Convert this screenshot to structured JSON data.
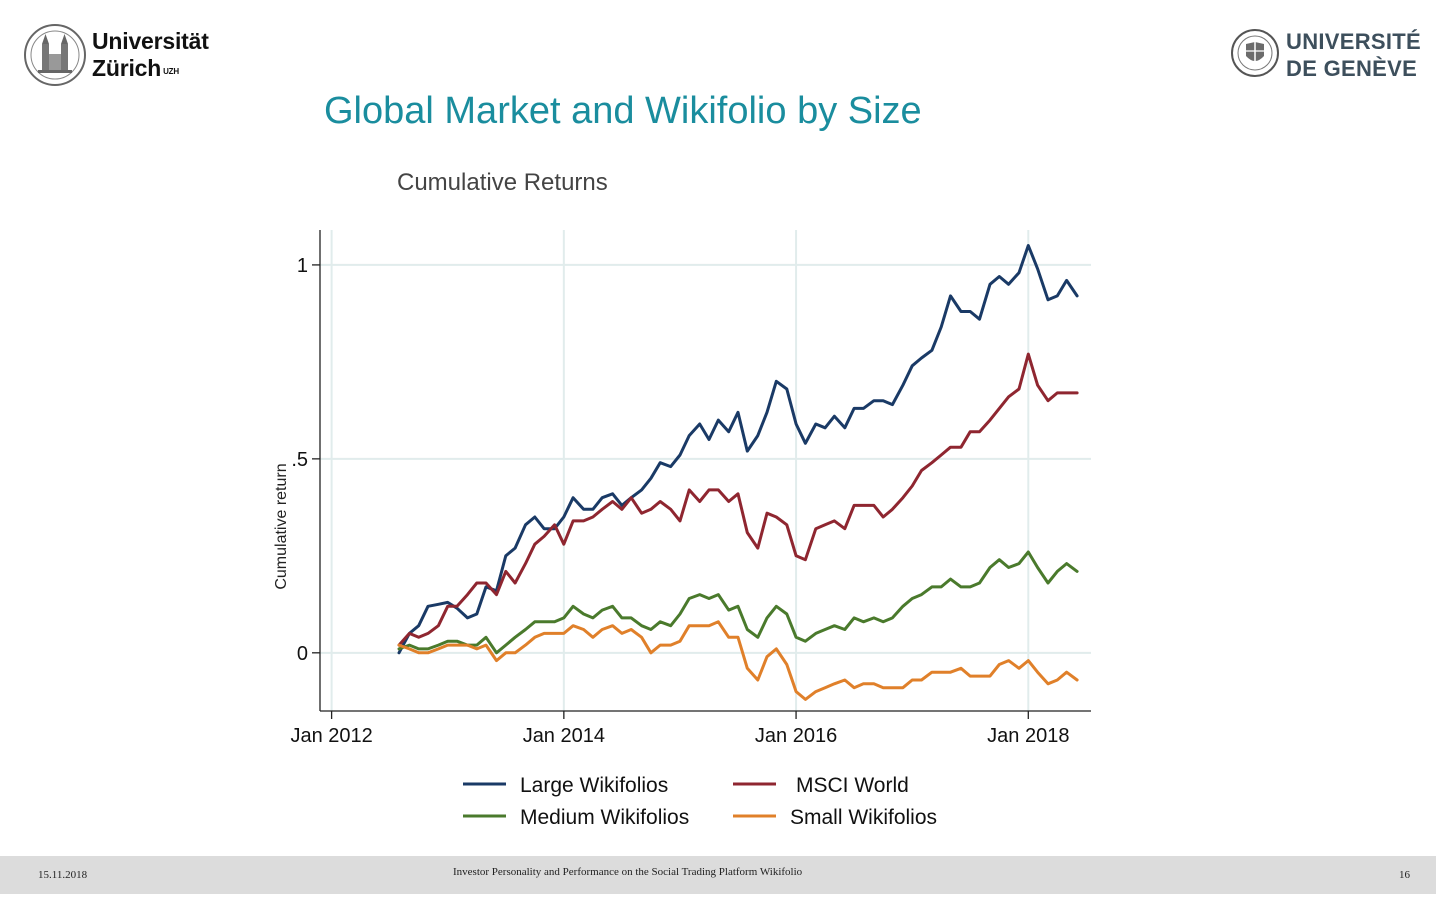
{
  "header": {
    "uzh_line1": "Universität",
    "uzh_line2": "Zürich",
    "uzh_sup": "UZH",
    "unige_line1": "UNIVERSITÉ",
    "unige_line2": "DE GENÈVE",
    "title": "Global Market and Wikifolio by Size"
  },
  "footer": {
    "date": "15.11.2018",
    "center": "Investor Personality and Performance on the Social Trading Platform Wikifolio",
    "page": "16"
  },
  "colors": {
    "title": "#1a8d9e",
    "grid": "#e1ecec",
    "large": "#1a3a66",
    "msci": "#8f2630",
    "medium": "#4a7a2c",
    "small": "#e0802a"
  },
  "chart_data": {
    "type": "line",
    "title": "Cumulative Returns",
    "xlabel": "",
    "ylabel": "Cumulative return",
    "xlim": [
      2011.9,
      2018.54
    ],
    "ylim": [
      -0.15,
      1.09
    ],
    "x_ticks": [
      {
        "value": 2012,
        "label": "Jan 2012"
      },
      {
        "value": 2014,
        "label": "Jan 2014"
      },
      {
        "value": 2016,
        "label": "Jan 2016"
      },
      {
        "value": 2018,
        "label": "Jan 2018"
      }
    ],
    "y_ticks": [
      {
        "value": 0,
        "label": "0"
      },
      {
        "value": 0.5,
        "label": ".5"
      },
      {
        "value": 1,
        "label": "1"
      }
    ],
    "x": [
      2012.58,
      2012.67,
      2012.75,
      2012.83,
      2012.92,
      2013.0,
      2013.08,
      2013.17,
      2013.25,
      2013.33,
      2013.42,
      2013.5,
      2013.58,
      2013.67,
      2013.75,
      2013.83,
      2013.92,
      2014.0,
      2014.08,
      2014.17,
      2014.25,
      2014.33,
      2014.42,
      2014.5,
      2014.58,
      2014.67,
      2014.75,
      2014.83,
      2014.92,
      2015.0,
      2015.08,
      2015.17,
      2015.25,
      2015.33,
      2015.42,
      2015.5,
      2015.58,
      2015.67,
      2015.75,
      2015.83,
      2015.92,
      2016.0,
      2016.08,
      2016.17,
      2016.25,
      2016.33,
      2016.42,
      2016.5,
      2016.58,
      2016.67,
      2016.75,
      2016.83,
      2016.92,
      2017.0,
      2017.08,
      2017.17,
      2017.25,
      2017.33,
      2017.42,
      2017.5,
      2017.58,
      2017.67,
      2017.75,
      2017.83,
      2017.92,
      2018.0,
      2018.08,
      2018.17,
      2018.25,
      2018.33,
      2018.42
    ],
    "series": [
      {
        "name": "Large Wikifolios",
        "color_key": "large",
        "values": [
          0.0,
          0.05,
          0.07,
          0.12,
          0.125,
          0.13,
          0.115,
          0.09,
          0.1,
          0.17,
          0.16,
          0.25,
          0.27,
          0.33,
          0.35,
          0.32,
          0.32,
          0.35,
          0.4,
          0.37,
          0.37,
          0.4,
          0.41,
          0.38,
          0.4,
          0.42,
          0.45,
          0.49,
          0.48,
          0.51,
          0.56,
          0.59,
          0.55,
          0.6,
          0.57,
          0.62,
          0.52,
          0.56,
          0.62,
          0.7,
          0.68,
          0.59,
          0.54,
          0.59,
          0.58,
          0.61,
          0.58,
          0.63,
          0.63,
          0.65,
          0.65,
          0.64,
          0.69,
          0.74,
          0.76,
          0.78,
          0.84,
          0.92,
          0.88,
          0.88,
          0.86,
          0.95,
          0.97,
          0.95,
          0.98,
          1.05,
          0.99,
          0.91,
          0.92,
          0.96,
          0.92
        ]
      },
      {
        "name": "MSCI World",
        "color_key": "msci",
        "values": [
          0.02,
          0.05,
          0.04,
          0.05,
          0.07,
          0.12,
          0.12,
          0.15,
          0.18,
          0.18,
          0.15,
          0.21,
          0.18,
          0.23,
          0.28,
          0.3,
          0.33,
          0.28,
          0.34,
          0.34,
          0.35,
          0.37,
          0.39,
          0.37,
          0.4,
          0.36,
          0.37,
          0.39,
          0.37,
          0.34,
          0.42,
          0.39,
          0.42,
          0.42,
          0.39,
          0.41,
          0.31,
          0.27,
          0.36,
          0.35,
          0.33,
          0.25,
          0.24,
          0.32,
          0.33,
          0.34,
          0.32,
          0.38,
          0.38,
          0.38,
          0.35,
          0.37,
          0.4,
          0.43,
          0.47,
          0.49,
          0.51,
          0.53,
          0.53,
          0.57,
          0.57,
          0.6,
          0.63,
          0.66,
          0.68,
          0.77,
          0.69,
          0.65,
          0.67,
          0.67,
          0.67
        ]
      },
      {
        "name": "Medium Wikifolios",
        "color_key": "medium",
        "values": [
          0.01,
          0.02,
          0.01,
          0.01,
          0.02,
          0.03,
          0.03,
          0.02,
          0.02,
          0.04,
          0.0,
          0.02,
          0.04,
          0.06,
          0.08,
          0.08,
          0.08,
          0.09,
          0.12,
          0.1,
          0.09,
          0.11,
          0.12,
          0.09,
          0.09,
          0.07,
          0.06,
          0.08,
          0.07,
          0.1,
          0.14,
          0.15,
          0.14,
          0.15,
          0.11,
          0.12,
          0.06,
          0.04,
          0.09,
          0.12,
          0.1,
          0.04,
          0.03,
          0.05,
          0.06,
          0.07,
          0.06,
          0.09,
          0.08,
          0.09,
          0.08,
          0.09,
          0.12,
          0.14,
          0.15,
          0.17,
          0.17,
          0.19,
          0.17,
          0.17,
          0.18,
          0.22,
          0.24,
          0.22,
          0.23,
          0.26,
          0.22,
          0.18,
          0.21,
          0.23,
          0.21
        ]
      },
      {
        "name": "Small Wikifolios",
        "color_key": "small",
        "values": [
          0.02,
          0.01,
          0.0,
          0.0,
          0.01,
          0.02,
          0.02,
          0.02,
          0.01,
          0.02,
          -0.02,
          0.0,
          0.0,
          0.02,
          0.04,
          0.05,
          0.05,
          0.05,
          0.07,
          0.06,
          0.04,
          0.06,
          0.07,
          0.05,
          0.06,
          0.04,
          0.0,
          0.02,
          0.02,
          0.03,
          0.07,
          0.07,
          0.07,
          0.08,
          0.04,
          0.04,
          -0.04,
          -0.07,
          -0.01,
          0.01,
          -0.03,
          -0.1,
          -0.12,
          -0.1,
          -0.09,
          -0.08,
          -0.07,
          -0.09,
          -0.08,
          -0.08,
          -0.09,
          -0.09,
          -0.09,
          -0.07,
          -0.07,
          -0.05,
          -0.05,
          -0.05,
          -0.04,
          -0.06,
          -0.06,
          -0.06,
          -0.03,
          -0.02,
          -0.04,
          -0.02,
          -0.05,
          -0.08,
          -0.07,
          -0.05,
          -0.07
        ]
      }
    ],
    "legend": {
      "placement": "bottom",
      "columns": 2,
      "order": [
        "Large Wikifolios",
        "MSCI World",
        "Medium Wikifolios",
        "Small Wikifolios"
      ]
    }
  }
}
